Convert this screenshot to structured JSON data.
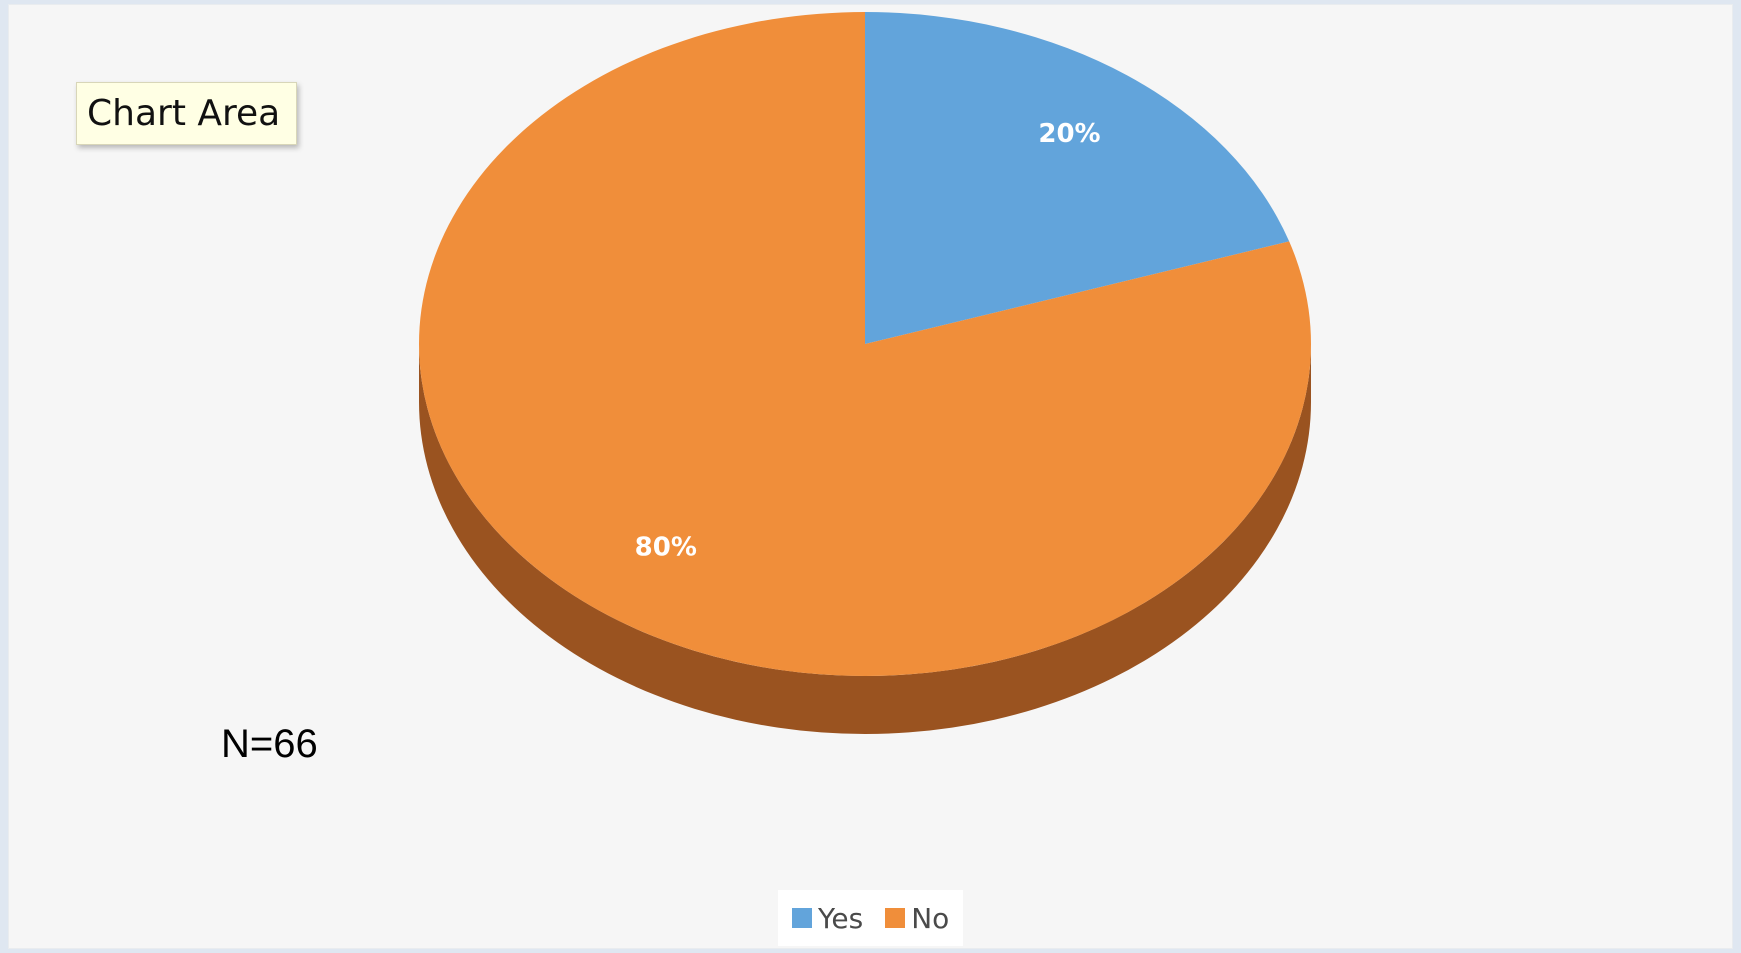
{
  "tooltip": {
    "text": "Chart Area"
  },
  "annotation": {
    "text": "N=66"
  },
  "chart_data": {
    "type": "pie",
    "style": "3d",
    "categories": [
      "Yes",
      "No"
    ],
    "values": [
      20,
      80
    ],
    "data_labels": [
      "20%",
      "80%"
    ],
    "colors": [
      "#62a4db",
      "#f08e3a"
    ],
    "side_colors": [
      "#3f7fb5",
      "#9a5320"
    ],
    "legend": {
      "placement": "bottom"
    },
    "start_angle_deg": 0
  }
}
